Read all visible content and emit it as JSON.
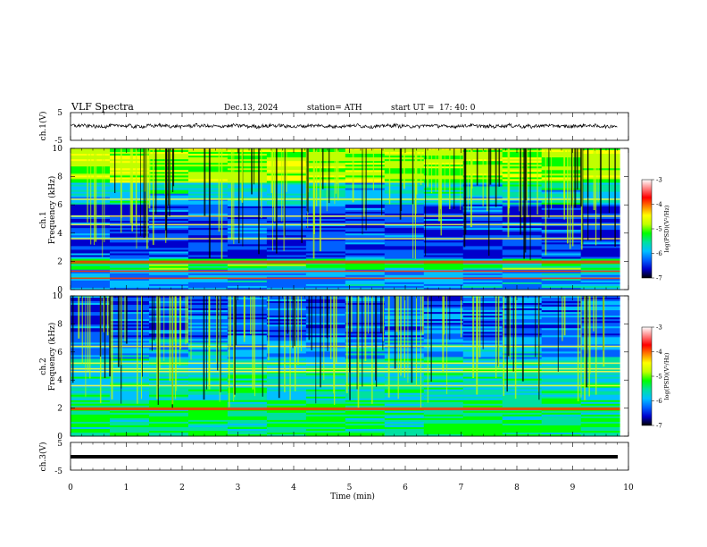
{
  "header": {
    "title": "VLF  Spectra",
    "date": "Dec.13, 2024",
    "station": "station= ATH",
    "start_label": "start  UT  =",
    "start_time": "17: 40: 0"
  },
  "x_axis": {
    "label": "Time  (min)",
    "ticks": [
      "0",
      "1",
      "2",
      "3",
      "4",
      "5",
      "6",
      "7",
      "8",
      "9",
      "10"
    ],
    "range": [
      0,
      10
    ]
  },
  "panels": {
    "ch1_time": {
      "ylabel": "ch.1(V)",
      "ticks": [
        "5",
        "-5"
      ],
      "range": [
        -5,
        5
      ]
    },
    "ch1_spec": {
      "ylabel": "ch.1",
      "ylabel2": "Frequency  (kHz)",
      "ticks": [
        "10",
        "8",
        "6",
        "4",
        "2",
        "0"
      ],
      "range": [
        0,
        10
      ]
    },
    "ch2_spec": {
      "ylabel": "ch.2",
      "ylabel2": "Frequency  (kHz)",
      "ticks": [
        "10",
        "8",
        "6",
        "4",
        "2",
        "0"
      ],
      "range": [
        0,
        10
      ]
    },
    "ch3_time": {
      "ylabel": "ch.3(V)",
      "ticks": [
        "5",
        "-5"
      ],
      "range": [
        -5,
        5
      ]
    }
  },
  "colorbar": {
    "label": "log(PSD)(V²/Hz)",
    "ticks": [
      "-3",
      "-4",
      "-5",
      "-6",
      "-7"
    ],
    "range": [
      -7,
      -3
    ],
    "colors": [
      "#000000",
      "#0000cc",
      "#0060ff",
      "#00c0ff",
      "#00e0a0",
      "#00ff00",
      "#c0ff00",
      "#ffff00",
      "#ff8000",
      "#ff0000",
      "#ff8080",
      "#ffffff"
    ]
  },
  "chart_data": [
    {
      "type": "line",
      "title": "",
      "xlabel": "",
      "ylabel": "ch.1(V)",
      "xlim": [
        0,
        10
      ],
      "ylim": [
        -5,
        5
      ],
      "series": [
        {
          "x": [
            0,
            1,
            2,
            3,
            4,
            5,
            6,
            7,
            8,
            9,
            9.8
          ],
          "values": [
            0,
            0.2,
            -0.3,
            0.1,
            0.3,
            -0.2,
            0.2,
            -0.1,
            0.1,
            0.2,
            0
          ]
        }
      ]
    },
    {
      "type": "heatmap",
      "title": "",
      "xlabel": "",
      "ylabel": "Frequency  (kHz)",
      "xlim": [
        0,
        10
      ],
      "ylim": [
        0,
        10
      ],
      "colorbar_range": [
        -7,
        -3
      ],
      "bands_khz": [
        0.8,
        1.3,
        1.9,
        2.0,
        3.6,
        4.6,
        5.2,
        6.4
      ]
    },
    {
      "type": "heatmap",
      "title": "",
      "xlabel": "",
      "ylabel": "Frequency  (kHz)",
      "xlim": [
        0,
        10
      ],
      "ylim": [
        0,
        10
      ],
      "colorbar_range": [
        -7,
        -3
      ],
      "bands_khz": [
        1.9,
        2.0,
        3.6,
        4.6,
        4.8,
        5.2,
        6.4
      ]
    },
    {
      "type": "line",
      "title": "",
      "xlabel": "Time  (min)",
      "ylabel": "ch.3(V)",
      "xlim": [
        0,
        10
      ],
      "ylim": [
        -5,
        5
      ],
      "series": [
        {
          "x": [
            0,
            9.8
          ],
          "values": [
            -1.5,
            -1.5
          ]
        }
      ]
    }
  ]
}
